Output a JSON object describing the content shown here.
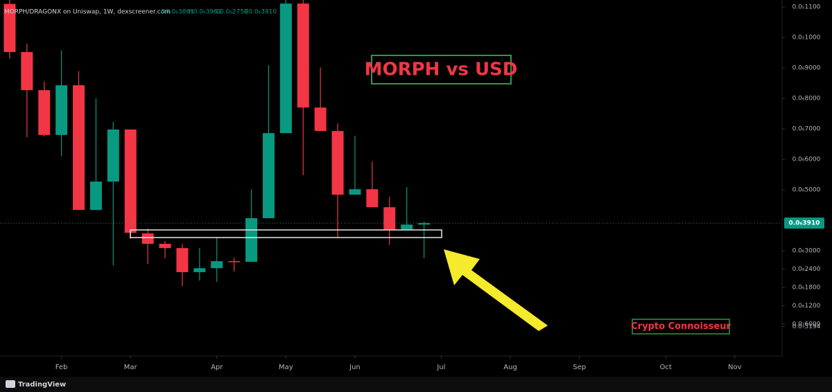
{
  "chart_data": {
    "type": "candlestick",
    "title": "MORPH vs USD",
    "symbol_header": "MORPH/DRAGONX on Uniswap, 1W, dexscreener.com",
    "ohlc_header": [
      "O0.0₆3861",
      "H0.0₆3961",
      "L0.0₆2759",
      "C0.0₆3910"
    ],
    "annotation": "Crypto Connoisseur",
    "brand": "TradingView",
    "x": [
      0,
      1,
      2,
      3,
      4,
      5,
      6,
      7,
      8,
      9,
      10,
      11,
      12,
      13,
      14,
      15,
      16,
      17,
      18,
      19,
      20,
      21,
      22,
      23,
      24
    ],
    "open": [
      1.11e-06,
      9.52e-07,
      8.27e-07,
      6.8e-07,
      8.43e-07,
      4.34e-07,
      5.27e-07,
      6.98e-07,
      3.57e-07,
      3.23e-07,
      3.09e-07,
      2.3e-07,
      2.43e-07,
      2.66e-07,
      2.64e-07,
      4.07e-07,
      6.86e-07,
      1.111e-06,
      7.7e-07,
      6.93e-07,
      4.84e-07,
      5.02e-07,
      4.43e-07,
      3.7e-07,
      3.86e-07
    ],
    "high": [
      1.123e-06,
      9.8e-07,
      8.55e-07,
      9.57e-07,
      8.89e-07,
      8e-07,
      7.23e-07,
      6.98e-07,
      3.73e-07,
      3.32e-07,
      3.23e-07,
      3.09e-07,
      3.45e-07,
      2.77e-07,
      5.02e-07,
      9.09e-07,
      1.123e-06,
      1.123e-06,
      9.02e-07,
      7.18e-07,
      6.77e-07,
      5.93e-07,
      4.77e-07,
      5.09e-07,
      3.961e-07
    ],
    "low": [
      9.3e-07,
      6.73e-07,
      6.75e-07,
      6.11e-07,
      4.34e-07,
      4.34e-07,
      2.52e-07,
      3.39e-07,
      2.57e-07,
      2.75e-07,
      1.84e-07,
      2.02e-07,
      1.98e-07,
      2.32e-07,
      2.64e-07,
      4.07e-07,
      6.86e-07,
      5.48e-07,
      6.93e-07,
      3.43e-07,
      4.84e-07,
      4.43e-07,
      3.2e-07,
      3.7e-07,
      2.759e-07
    ],
    "close": [
      9.52e-07,
      8.27e-07,
      6.8e-07,
      8.43e-07,
      4.34e-07,
      5.27e-07,
      6.98e-07,
      3.59e-07,
      3.23e-07,
      3.09e-07,
      2.3e-07,
      2.43e-07,
      2.66e-07,
      2.64e-07,
      4.07e-07,
      6.86e-07,
      1.111e-06,
      7.7e-07,
      6.93e-07,
      4.84e-07,
      5.02e-07,
      4.43e-07,
      3.7e-07,
      3.86e-07,
      3.91e-07
    ],
    "up_color": "#089981",
    "down_color": "#f23645",
    "xlim": [
      -0.56,
      44.74
    ],
    "xticks": [
      {
        "value": 3,
        "label": "Feb"
      },
      {
        "value": 7,
        "label": "Mar"
      },
      {
        "value": 12,
        "label": "Apr"
      },
      {
        "value": 16,
        "label": "May"
      },
      {
        "value": 20,
        "label": "Jun"
      },
      {
        "value": 25,
        "label": "Jul"
      },
      {
        "value": 29,
        "label": "Aug"
      },
      {
        "value": 33,
        "label": "Sep"
      },
      {
        "value": 38,
        "label": "Oct"
      },
      {
        "value": 42,
        "label": "Nov"
      }
    ],
    "ylim": [
      -4.5e-08,
      1.1227e-06
    ],
    "yticks": [
      {
        "value": 1.1e-06,
        "label": "0.0₅1100"
      },
      {
        "value": 1e-06,
        "label": "0.0₅1000"
      },
      {
        "value": 9e-07,
        "label": "0.0₆9000"
      },
      {
        "value": 8e-07,
        "label": "0.0₆8000"
      },
      {
        "value": 7e-07,
        "label": "0.0₆7000"
      },
      {
        "value": 6e-07,
        "label": "0.0₆6000"
      },
      {
        "value": 5e-07,
        "label": "0.0₆5000"
      },
      {
        "value": 3e-07,
        "label": "0.0₆3000"
      },
      {
        "value": 2.4e-07,
        "label": "0.0₆2400"
      },
      {
        "value": 1.8e-07,
        "label": "0.0₆1800"
      },
      {
        "value": 1.2e-07,
        "label": "0.0₆1200"
      },
      {
        "value": 6e-08,
        "label": "0.0₇6000"
      },
      {
        "value": 5.194e-08,
        "label": "0.0₇5194"
      }
    ],
    "last_price": {
      "value": 3.91e-07,
      "label": "0.0₆3910"
    }
  }
}
